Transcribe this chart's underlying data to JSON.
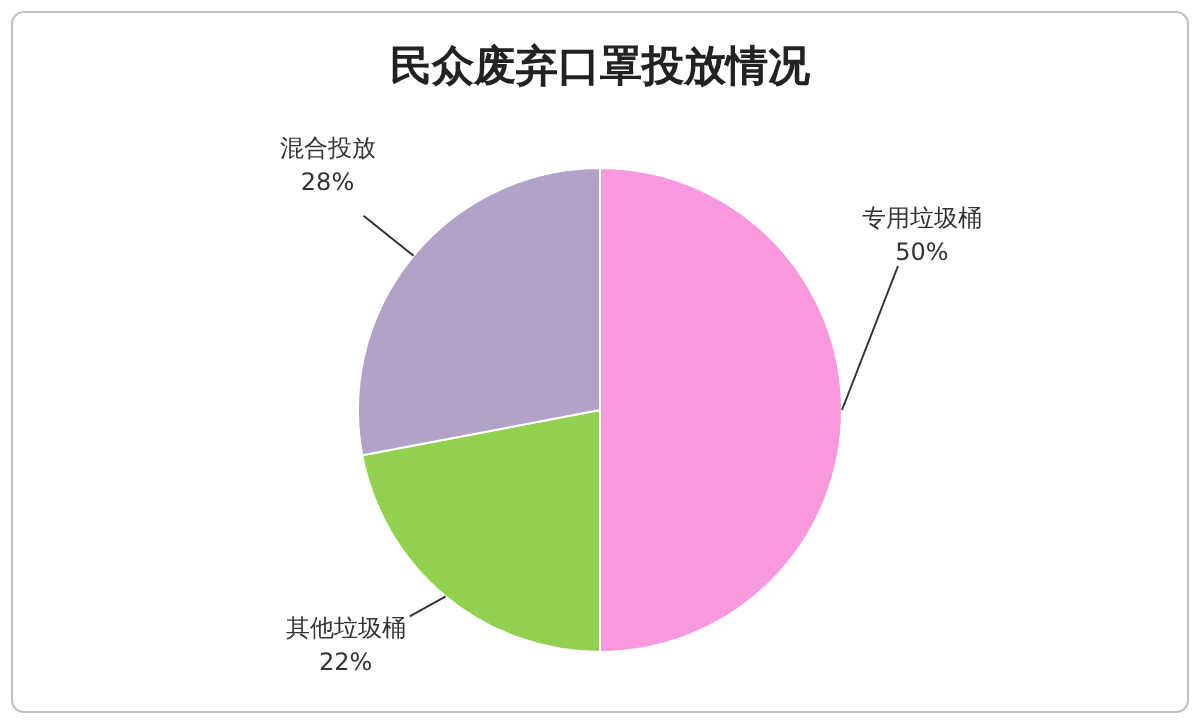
{
  "chart_data": {
    "type": "pie",
    "title": "民众废弃口罩投放情况",
    "categories": [
      "专用垃圾桶",
      "其他垃圾桶",
      "混合投放"
    ],
    "values": [
      50,
      22,
      28
    ],
    "colors": [
      "#f799dc",
      "#92d050",
      "#b3a2c7"
    ],
    "value_labels": [
      "50%",
      "22%",
      "28%"
    ]
  }
}
